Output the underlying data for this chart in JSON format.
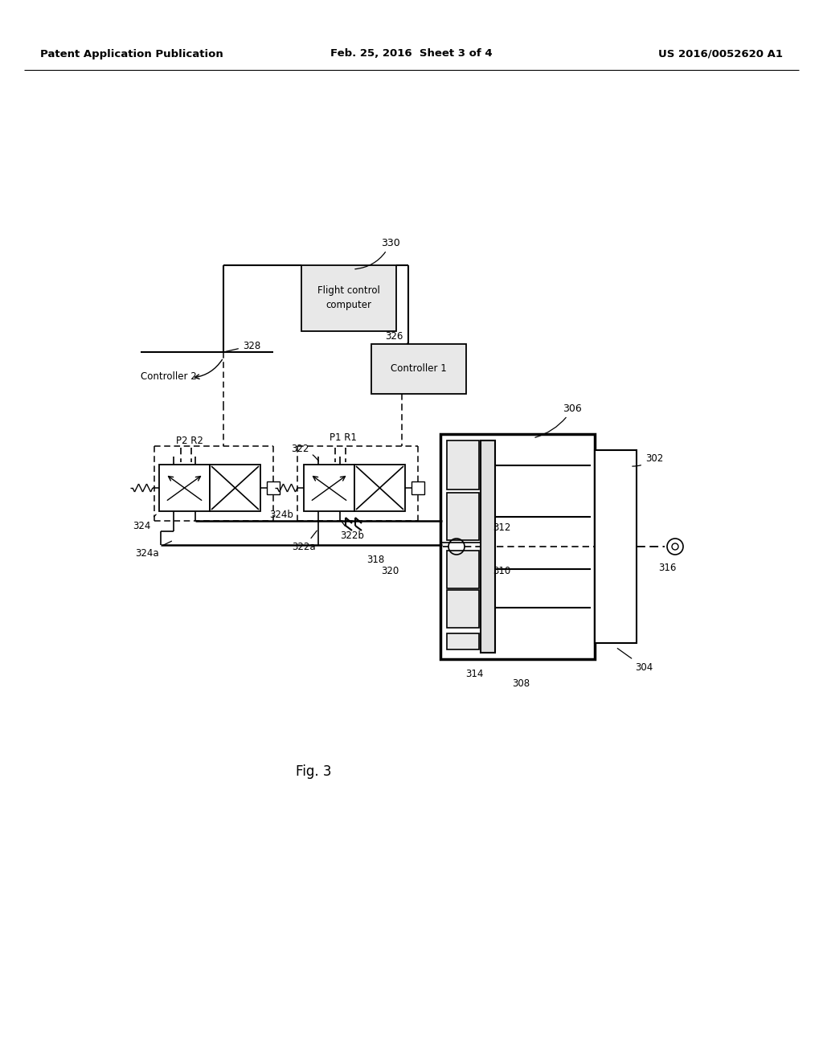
{
  "bg_color": "#ffffff",
  "header_left": "Patent Application Publication",
  "header_center": "Feb. 25, 2016  Sheet 3 of 4",
  "header_right": "US 2016/0052620 A1",
  "fig_label": "Fig. 3"
}
